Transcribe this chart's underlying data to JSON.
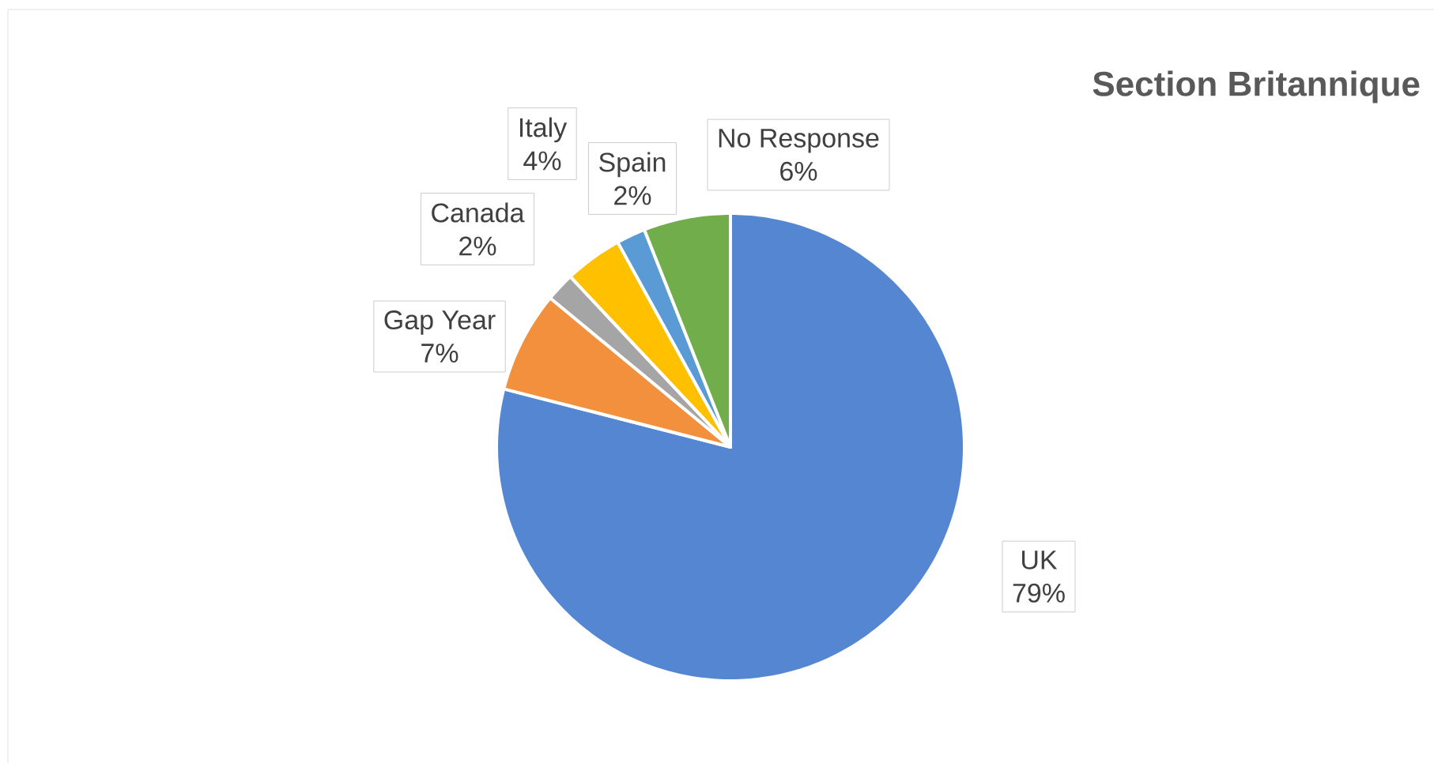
{
  "chart_data": {
    "type": "pie",
    "title": "Section Britannique",
    "categories": [
      "UK",
      "Gap Year",
      "Canada",
      "Italy",
      "Spain",
      "No Response"
    ],
    "values": [
      79,
      7,
      2,
      4,
      2,
      6
    ],
    "value_labels": [
      "79%",
      "7%",
      "2%",
      "4%",
      "2%",
      "6%"
    ],
    "colors": [
      "#5586d2",
      "#f2903e",
      "#a5a5a5",
      "#ffc000",
      "#5b9bd5",
      "#72ad4c"
    ]
  }
}
